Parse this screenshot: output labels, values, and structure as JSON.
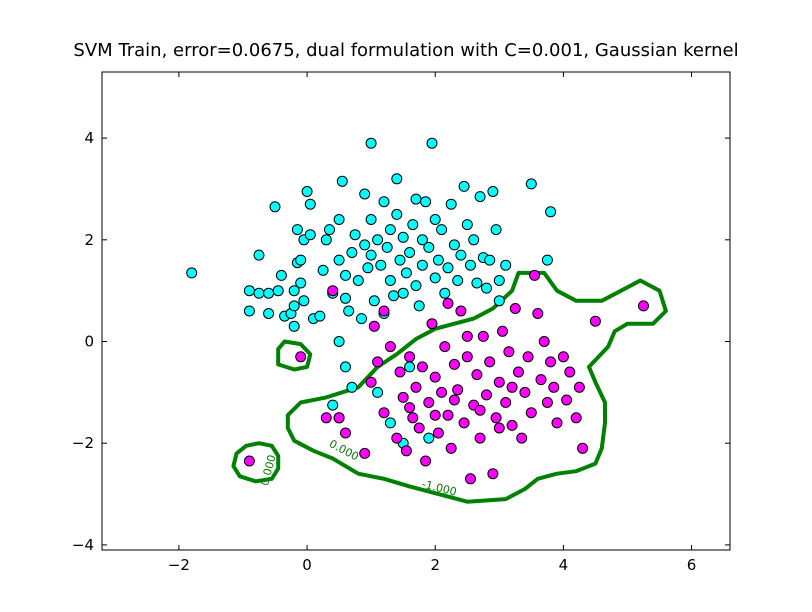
{
  "chart_data": {
    "type": "scatter",
    "title": "SVM Train, error=0.0675, dual formulation with C=0.001, Gaussian kernel",
    "xlabel": "",
    "ylabel": "",
    "xlim": [
      -3.2,
      6.6
    ],
    "ylim": [
      -4.1,
      5.3
    ],
    "x_ticks": [
      -2,
      0,
      2,
      4,
      6
    ],
    "y_ticks": [
      -4,
      -2,
      0,
      2,
      4
    ],
    "grid": false,
    "legend": "none",
    "colors": {
      "class_a": "#00ffff",
      "class_b": "#ff00ff",
      "boundary": "#008000",
      "marker_edge": "#000000"
    },
    "series": [
      {
        "values": [
          [
            -1.8,
            1.35
          ],
          [
            -0.9,
            0.6
          ],
          [
            -0.9,
            1.0
          ],
          [
            -0.75,
            1.7
          ],
          [
            -0.75,
            0.95
          ],
          [
            -0.6,
            0.55
          ],
          [
            -0.6,
            0.95
          ],
          [
            -0.5,
            2.65
          ],
          [
            -0.45,
            1.0
          ],
          [
            -0.4,
            1.3
          ],
          [
            -0.35,
            0.5
          ],
          [
            -0.25,
            0.55
          ],
          [
            -0.2,
            1.0
          ],
          [
            -0.2,
            0.7
          ],
          [
            -0.15,
            1.55
          ],
          [
            -0.15,
            2.2
          ],
          [
            -0.1,
            1.6
          ],
          [
            -0.1,
            1.15
          ],
          [
            -0.05,
            2.0
          ],
          [
            -0.05,
            0.8
          ],
          [
            0.0,
            2.95
          ],
          [
            0.05,
            2.7
          ],
          [
            0.05,
            2.1
          ],
          [
            0.1,
            0.45
          ],
          [
            0.2,
            0.5
          ],
          [
            0.25,
            1.4
          ],
          [
            0.3,
            2.0
          ],
          [
            0.35,
            2.2
          ],
          [
            0.4,
            0.95
          ],
          [
            0.5,
            2.4
          ],
          [
            0.5,
            1.6
          ],
          [
            0.55,
            3.15
          ],
          [
            0.6,
            1.3
          ],
          [
            0.6,
            0.85
          ],
          [
            0.65,
            0.6
          ],
          [
            0.7,
            1.75
          ],
          [
            0.75,
            2.1
          ],
          [
            0.8,
            1.2
          ],
          [
            0.85,
            0.45
          ],
          [
            0.9,
            2.9
          ],
          [
            0.9,
            1.9
          ],
          [
            0.95,
            1.45
          ],
          [
            1.0,
            2.4
          ],
          [
            1.0,
            1.7
          ],
          [
            1.0,
            3.9
          ],
          [
            1.05,
            0.8
          ],
          [
            1.1,
            2.0
          ],
          [
            1.15,
            1.5
          ],
          [
            1.2,
            2.75
          ],
          [
            1.2,
            0.55
          ],
          [
            1.25,
            1.85
          ],
          [
            1.3,
            1.2
          ],
          [
            1.3,
            2.2
          ],
          [
            1.35,
            0.9
          ],
          [
            1.4,
            3.2
          ],
          [
            1.4,
            2.5
          ],
          [
            1.45,
            1.6
          ],
          [
            1.5,
            0.95
          ],
          [
            1.5,
            2.05
          ],
          [
            1.55,
            1.35
          ],
          [
            1.6,
            1.75
          ],
          [
            1.65,
            2.3
          ],
          [
            1.7,
            2.8
          ],
          [
            1.7,
            1.1
          ],
          [
            1.75,
            0.7
          ],
          [
            1.8,
            1.5
          ],
          [
            1.8,
            2.0
          ],
          [
            1.85,
            2.75
          ],
          [
            1.9,
            1.85
          ],
          [
            1.95,
            3.9
          ],
          [
            2.0,
            1.25
          ],
          [
            2.0,
            2.4
          ],
          [
            2.05,
            1.6
          ],
          [
            2.1,
            2.2
          ],
          [
            2.15,
            0.95
          ],
          [
            2.2,
            1.45
          ],
          [
            2.25,
            2.7
          ],
          [
            2.3,
            1.9
          ],
          [
            2.35,
            1.2
          ],
          [
            2.4,
            1.7
          ],
          [
            2.45,
            3.05
          ],
          [
            2.5,
            2.3
          ],
          [
            2.55,
            1.5
          ],
          [
            2.6,
            2.0
          ],
          [
            2.65,
            1.15
          ],
          [
            2.7,
            2.85
          ],
          [
            2.75,
            1.65
          ],
          [
            2.8,
            1.05
          ],
          [
            2.85,
            1.6
          ],
          [
            2.9,
            2.95
          ],
          [
            2.95,
            2.2
          ],
          [
            3.0,
            1.2
          ],
          [
            3.0,
            0.8
          ],
          [
            3.1,
            1.5
          ],
          [
            3.5,
            3.1
          ],
          [
            3.8,
            2.55
          ],
          [
            3.75,
            1.6
          ],
          [
            0.5,
            0.0
          ],
          [
            0.6,
            -0.5
          ],
          [
            0.7,
            -0.9
          ],
          [
            0.4,
            -1.25
          ],
          [
            0.5,
            -1.5
          ],
          [
            1.1,
            -1.0
          ],
          [
            1.5,
            -2.0
          ],
          [
            1.3,
            -1.6
          ],
          [
            -0.2,
            0.3
          ],
          [
            1.6,
            -0.5
          ],
          [
            1.9,
            -1.9
          ]
        ],
        "color": "#00ffff"
      },
      {
        "values": [
          [
            -0.1,
            -0.3
          ],
          [
            0.4,
            1.0
          ],
          [
            0.5,
            -1.5
          ],
          [
            0.6,
            -1.8
          ],
          [
            0.9,
            -2.2
          ],
          [
            1.0,
            -0.8
          ],
          [
            1.05,
            0.3
          ],
          [
            1.1,
            -0.4
          ],
          [
            1.2,
            -1.4
          ],
          [
            1.3,
            -0.1
          ],
          [
            1.4,
            -1.9
          ],
          [
            1.45,
            -0.6
          ],
          [
            1.5,
            -1.1
          ],
          [
            1.55,
            -2.15
          ],
          [
            1.6,
            -0.3
          ],
          [
            1.65,
            -1.5
          ],
          [
            1.7,
            -0.9
          ],
          [
            1.75,
            -1.7
          ],
          [
            1.8,
            -0.5
          ],
          [
            1.85,
            -2.35
          ],
          [
            1.9,
            -1.2
          ],
          [
            1.95,
            0.35
          ],
          [
            2.0,
            -0.7
          ],
          [
            2.05,
            -1.8
          ],
          [
            2.1,
            -1.0
          ],
          [
            2.15,
            -0.1
          ],
          [
            2.2,
            -1.45
          ],
          [
            2.25,
            -2.1
          ],
          [
            2.3,
            -0.45
          ],
          [
            2.35,
            -0.95
          ],
          [
            2.4,
            0.6
          ],
          [
            2.45,
            -1.6
          ],
          [
            2.5,
            -0.3
          ],
          [
            2.55,
            -2.7
          ],
          [
            2.6,
            -1.25
          ],
          [
            2.65,
            -0.65
          ],
          [
            2.7,
            -1.9
          ],
          [
            2.75,
            0.1
          ],
          [
            2.8,
            -1.05
          ],
          [
            2.85,
            -0.4
          ],
          [
            2.9,
            -2.6
          ],
          [
            2.95,
            -1.5
          ],
          [
            3.0,
            -0.8
          ],
          [
            3.05,
            0.2
          ],
          [
            3.1,
            -1.2
          ],
          [
            3.15,
            -0.2
          ],
          [
            3.2,
            -1.65
          ],
          [
            3.25,
            0.65
          ],
          [
            3.3,
            -0.6
          ],
          [
            3.35,
            -1.9
          ],
          [
            3.4,
            -1.0
          ],
          [
            3.45,
            -0.3
          ],
          [
            3.5,
            -1.4
          ],
          [
            3.55,
            1.3
          ],
          [
            3.6,
            0.55
          ],
          [
            3.65,
            -0.75
          ],
          [
            3.7,
            0.0
          ],
          [
            3.75,
            -1.2
          ],
          [
            3.8,
            -0.4
          ],
          [
            3.85,
            -0.9
          ],
          [
            3.9,
            -1.6
          ],
          [
            4.0,
            -0.3
          ],
          [
            4.05,
            -1.15
          ],
          [
            4.1,
            -0.6
          ],
          [
            4.2,
            -1.5
          ],
          [
            4.25,
            -0.9
          ],
          [
            4.3,
            -2.1
          ],
          [
            4.5,
            0.4
          ],
          [
            5.25,
            0.7
          ],
          [
            -0.9,
            -2.35
          ],
          [
            0.3,
            -1.5
          ],
          [
            2.2,
            0.75
          ],
          [
            2.5,
            0.1
          ],
          [
            1.2,
            0.6
          ],
          [
            1.6,
            -1.3
          ],
          [
            2.0,
            -1.45
          ],
          [
            2.3,
            -1.15
          ],
          [
            2.7,
            -1.35
          ],
          [
            3.0,
            -1.7
          ],
          [
            3.2,
            -0.9
          ]
        ],
        "color": "#ff00ff"
      }
    ],
    "decision_boundary": {
      "level_labels": [
        "0.000",
        "0.000",
        "-1.000"
      ],
      "contours": [
        [
          [
            -0.45,
            -2.25
          ],
          [
            -0.55,
            -2.05
          ],
          [
            -0.75,
            -2.0
          ],
          [
            -0.95,
            -2.05
          ],
          [
            -1.1,
            -2.2
          ],
          [
            -1.15,
            -2.45
          ],
          [
            -1.05,
            -2.65
          ],
          [
            -0.8,
            -2.75
          ],
          [
            -0.55,
            -2.7
          ],
          [
            -0.45,
            -2.5
          ]
        ],
        [
          [
            -0.45,
            -0.15
          ],
          [
            -0.35,
            0.0
          ],
          [
            -0.1,
            -0.05
          ],
          [
            0.05,
            -0.25
          ],
          [
            0.0,
            -0.5
          ],
          [
            -0.2,
            -0.55
          ],
          [
            -0.45,
            -0.45
          ]
        ],
        [
          [
            -0.3,
            -1.45
          ],
          [
            -0.1,
            -1.2
          ],
          [
            0.3,
            -1.1
          ],
          [
            0.8,
            -0.9
          ],
          [
            1.1,
            -0.5
          ],
          [
            1.4,
            -0.25
          ],
          [
            1.7,
            0.05
          ],
          [
            2.0,
            0.25
          ],
          [
            2.3,
            0.35
          ],
          [
            2.6,
            0.45
          ],
          [
            2.9,
            0.65
          ],
          [
            3.2,
            1.0
          ],
          [
            3.3,
            1.35
          ],
          [
            3.7,
            1.35
          ],
          [
            3.9,
            1.0
          ],
          [
            4.2,
            0.8
          ],
          [
            4.6,
            0.8
          ],
          [
            4.9,
            1.0
          ],
          [
            5.2,
            1.2
          ],
          [
            5.5,
            1.0
          ],
          [
            5.6,
            0.6
          ],
          [
            5.4,
            0.35
          ],
          [
            5.0,
            0.35
          ],
          [
            4.8,
            0.2
          ],
          [
            4.7,
            -0.1
          ],
          [
            4.4,
            -0.5
          ],
          [
            4.5,
            -0.8
          ],
          [
            4.65,
            -1.2
          ],
          [
            4.65,
            -1.6
          ],
          [
            4.6,
            -2.1
          ],
          [
            4.5,
            -2.4
          ],
          [
            4.2,
            -2.55
          ],
          [
            3.9,
            -2.6
          ],
          [
            3.6,
            -2.7
          ],
          [
            3.4,
            -2.9
          ],
          [
            3.1,
            -3.1
          ],
          [
            2.5,
            -3.15
          ],
          [
            2.2,
            -3.05
          ],
          [
            1.6,
            -2.85
          ],
          [
            1.2,
            -2.7
          ],
          [
            0.8,
            -2.6
          ],
          [
            0.4,
            -2.3
          ],
          [
            0.1,
            -2.15
          ],
          [
            -0.2,
            -1.95
          ],
          [
            -0.3,
            -1.7
          ]
        ]
      ]
    }
  }
}
